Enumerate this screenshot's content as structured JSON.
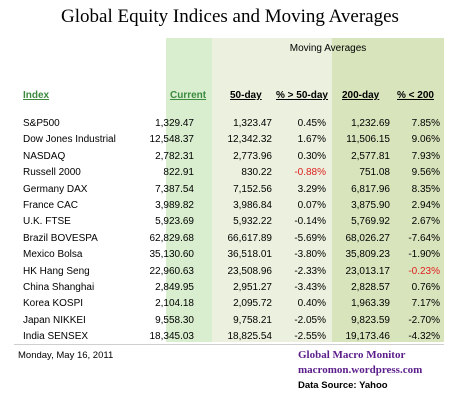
{
  "title": "Global Equity Indices and Moving Averages",
  "moving_averages_label": "Moving Averages",
  "headers": {
    "index": "Index",
    "current": "Current",
    "ma50": "50-day",
    "pct_gt_50": "% > 50-day",
    "ma200": "200-day",
    "pct_lt_200": "% < 200"
  },
  "rows": [
    {
      "name": "S&P500",
      "current": "1,329.47",
      "ma50": "1,323.47",
      "pct50": "0.45%",
      "ma200": "1,232.69",
      "pct200": "7.85%"
    },
    {
      "name": "Dow Jones Industrial",
      "current": "12,548.37",
      "ma50": "12,342.32",
      "pct50": "1.67%",
      "ma200": "11,506.15",
      "pct200": "9.06%"
    },
    {
      "name": "NASDAQ",
      "current": "2,782.31",
      "ma50": "2,773.96",
      "pct50": "0.30%",
      "ma200": "2,577.81",
      "pct200": "7.93%"
    },
    {
      "name": "Russell 2000",
      "current": "822.91",
      "ma50": "830.22",
      "pct50": "-0.88%",
      "ma200": "751.08",
      "pct200": "9.56%"
    },
    {
      "name": "Germany DAX",
      "current": "7,387.54",
      "ma50": "7,152.56",
      "pct50": "3.29%",
      "ma200": "6,817.96",
      "pct200": "8.35%"
    },
    {
      "name": "France CAC",
      "current": "3,989.82",
      "ma50": "3,986.84",
      "pct50": "0.07%",
      "ma200": "3,875.90",
      "pct200": "2.94%"
    },
    {
      "name": "U.K. FTSE",
      "current": "5,923.69",
      "ma50": "5,932.22",
      "pct50": "-0.14%",
      "ma200": "5,769.92",
      "pct200": "2.67%"
    },
    {
      "name": "Brazil BOVESPA",
      "current": "62,829.68",
      "ma50": "66,617.89",
      "pct50": "-5.69%",
      "ma200": "68,026.27",
      "pct200": "-7.64%"
    },
    {
      "name": "Mexico Bolsa",
      "current": "35,130.60",
      "ma50": "36,518.01",
      "pct50": "-3.80%",
      "ma200": "35,809.23",
      "pct200": "-1.90%"
    },
    {
      "name": "HK  Hang Seng",
      "current": "22,960.63",
      "ma50": "23,508.96",
      "pct50": "-2.33%",
      "ma200": "23,013.17",
      "pct200": "-0.23%"
    },
    {
      "name": "China Shanghai",
      "current": "2,849.95",
      "ma50": "2,951.27",
      "pct50": "-3.43%",
      "ma200": "2,828.57",
      "pct200": "0.76%"
    },
    {
      "name": "Korea KOSPI",
      "current": "2,104.18",
      "ma50": "2,095.72",
      "pct50": "0.40%",
      "ma200": "1,963.39",
      "pct200": "7.17%"
    },
    {
      "name": "Japan NIKKEI",
      "current": "9,558.30",
      "ma50": "9,758.21",
      "pct50": "-2.05%",
      "ma200": "9,823.59",
      "pct200": "-2.70%"
    },
    {
      "name": "India SENSEX",
      "current": "18,345.03",
      "ma50": "18,825.54",
      "pct50": "-2.55%",
      "ma200": "19,173.46",
      "pct200": "-4.32%"
    }
  ],
  "highlight": {
    "red_pct50_rows": [
      3
    ],
    "red_pct200_rows": [
      9
    ],
    "red_color": "#e02020",
    "current_color": "#3b8a3e",
    "brand_color": "#5a1d8a"
  },
  "footer": {
    "date": "Monday, May 16, 2011",
    "brand": "Global Macro Monitor",
    "site": "macromon.wordpress.com",
    "source": "Data Source: Yahoo"
  }
}
